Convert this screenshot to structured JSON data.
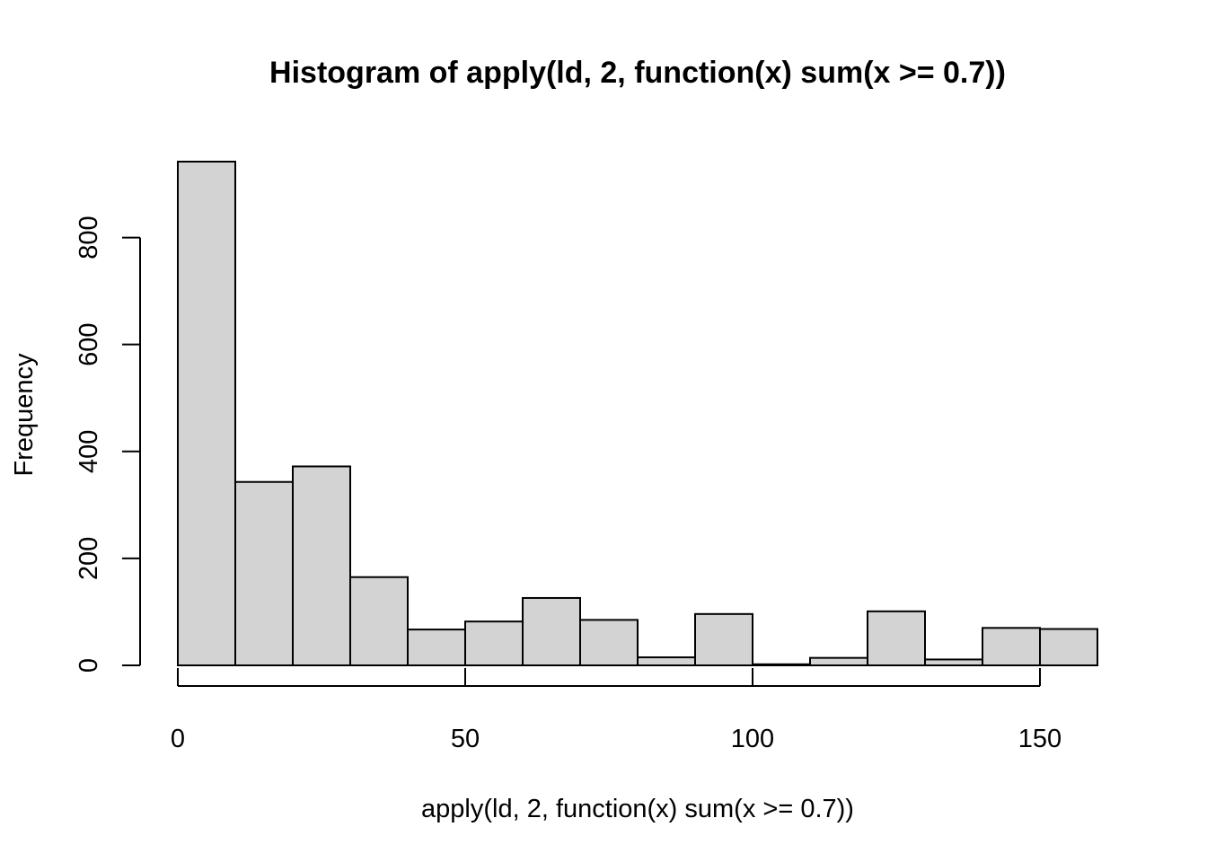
{
  "chart_data": {
    "type": "bar",
    "title": "Histogram of apply(ld, 2, function(x) sum(x >= 0.7))",
    "xlabel": "apply(ld, 2, function(x) sum(x >= 0.7))",
    "ylabel": "Frequency",
    "bin_edges": [
      0,
      10,
      20,
      30,
      40,
      50,
      60,
      70,
      80,
      90,
      100,
      110,
      120,
      130,
      140,
      150,
      160
    ],
    "values": [
      942,
      343,
      372,
      165,
      67,
      82,
      126,
      85,
      15,
      96,
      2,
      14,
      101,
      11,
      70,
      68
    ],
    "xlim": [
      0,
      160
    ],
    "ylim": [
      0,
      942
    ],
    "x_ticks": [
      0,
      50,
      100,
      150
    ],
    "x_tick_labels": [
      "0",
      "50",
      "100",
      "150"
    ],
    "y_ticks": [
      0,
      200,
      400,
      600,
      800
    ],
    "y_tick_labels": [
      "0",
      "200",
      "400",
      "600",
      "800"
    ],
    "grid": false,
    "colors": {
      "bar_fill": "#d3d3d3",
      "bar_stroke": "#000000",
      "axis": "#000000"
    }
  }
}
